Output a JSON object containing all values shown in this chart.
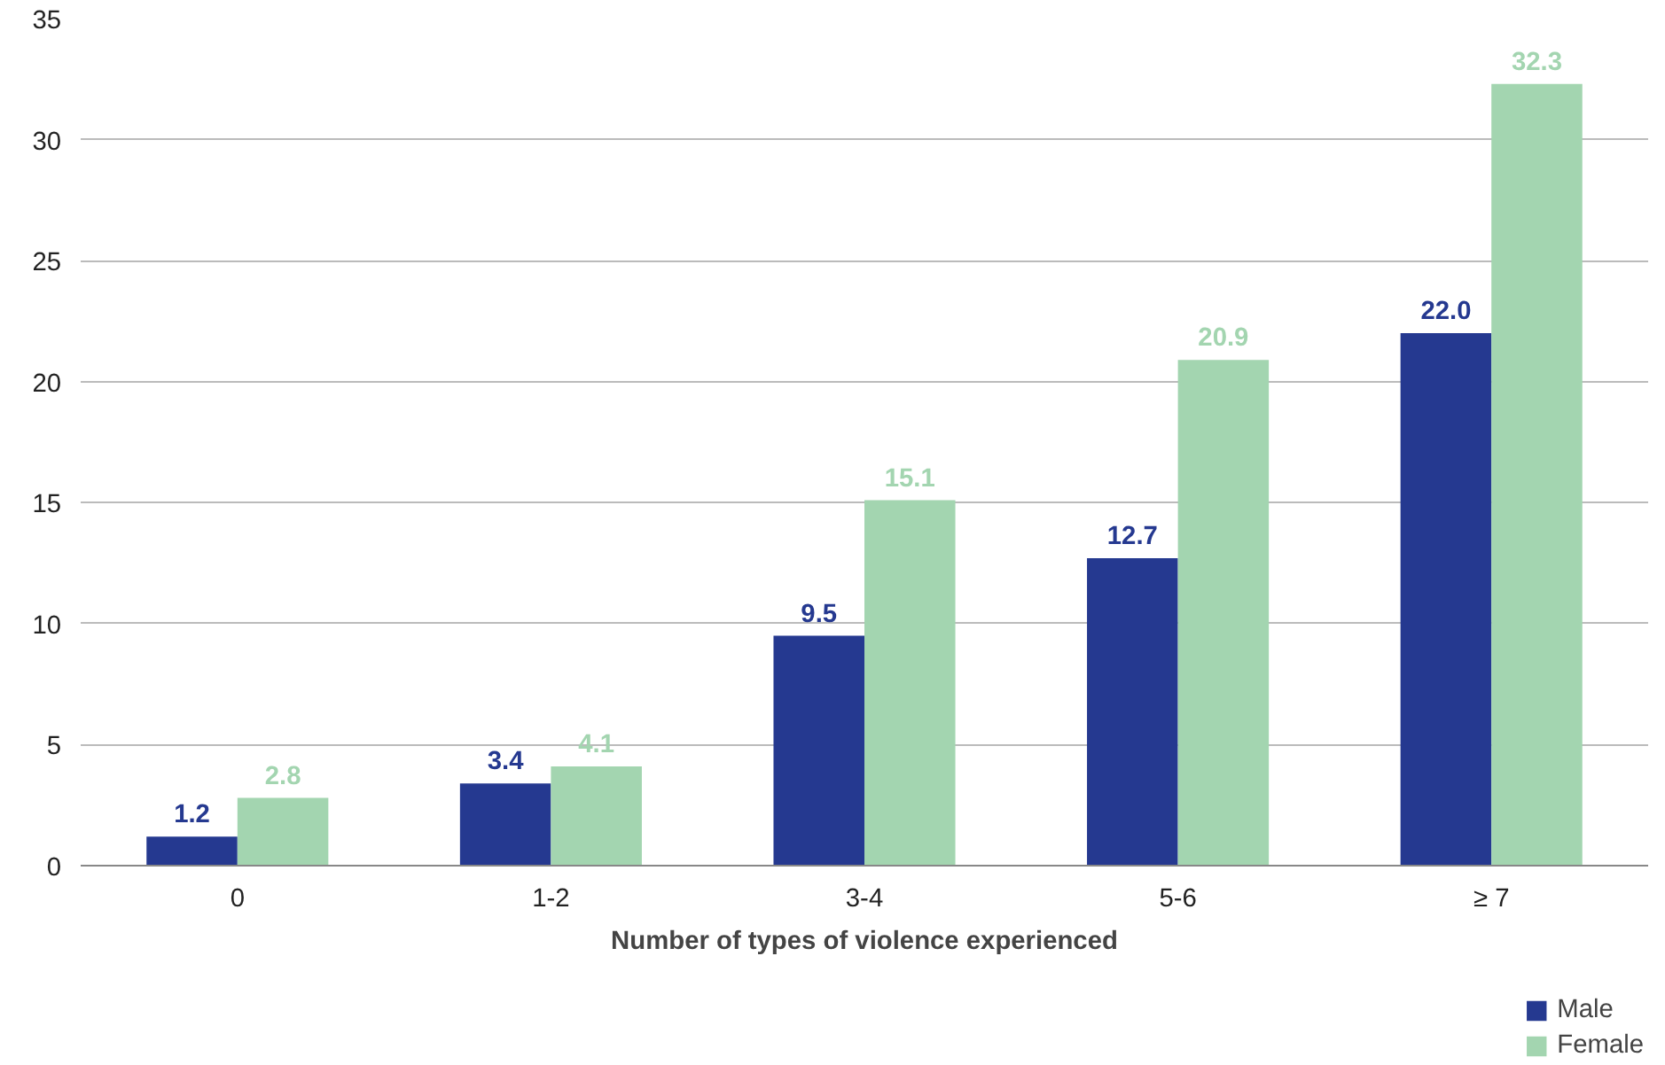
{
  "chart_data": {
    "type": "bar",
    "xlabel": "Number of types of violence experienced",
    "categories": [
      "0",
      "1-2",
      "3-4",
      "5-6",
      "≥ 7"
    ],
    "series": [
      {
        "name": "Male",
        "color": "#253990",
        "values": [
          1.2,
          3.4,
          9.5,
          12.7,
          22.0
        ],
        "value_labels": [
          "1.2",
          "3.4",
          "9.5",
          "12.7",
          "22.0"
        ]
      },
      {
        "name": "Female",
        "color": "#a3d5b0",
        "values": [
          2.8,
          4.1,
          15.1,
          20.9,
          32.3
        ],
        "value_labels": [
          "2.8",
          "4.1",
          "15.1",
          "20.9",
          "32.3"
        ]
      }
    ],
    "ylim": [
      0,
      35
    ],
    "yticks": [
      0,
      5,
      10,
      15,
      20,
      25,
      30,
      35
    ],
    "grid": "y",
    "legend": "bottom right"
  }
}
